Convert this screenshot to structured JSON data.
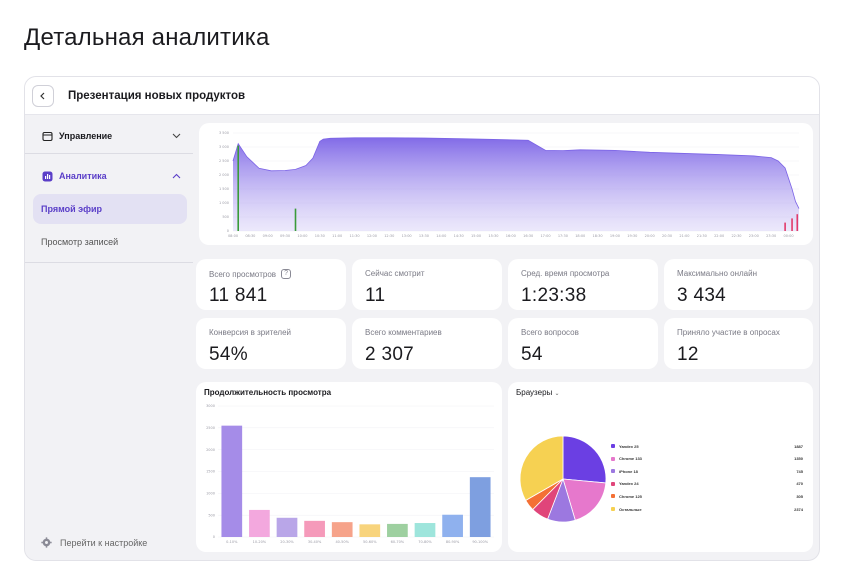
{
  "page": {
    "title": "Детальная аналитика"
  },
  "header": {
    "back_icon": "chevron-left-icon",
    "title": "Презентация новых продуктов"
  },
  "sidebar": {
    "groups": [
      {
        "label": "Управление",
        "icon": "window-icon",
        "expanded": false
      },
      {
        "label": "Аналитика",
        "icon": "analytics-icon",
        "expanded": true
      }
    ],
    "items": [
      {
        "label": "Прямой эфир",
        "active": true
      },
      {
        "label": "Просмотр записей",
        "active": false
      }
    ],
    "footer_label": "Перейти к настройке",
    "accent": "#5a3ec8"
  },
  "stats": [
    {
      "label": "Всего просмотров",
      "value": "11 841",
      "help": true
    },
    {
      "label": "Сейчас смотрит",
      "value": "11"
    },
    {
      "label": "Сред. время просмотра",
      "value": "1:23:38"
    },
    {
      "label": "Максимально онлайн",
      "value": "3 434"
    },
    {
      "label": "Конверсия в зрителей",
      "value": "54%"
    },
    {
      "label": "Всего комментариев",
      "value": "2 307"
    },
    {
      "label": "Всего вопросов",
      "value": "54"
    },
    {
      "label": "Приняло участие в опросах",
      "value": "12"
    }
  ],
  "chart_data": [
    {
      "type": "area",
      "y_ticks": [
        "3 500",
        "3 000",
        "2 500",
        "2 000",
        "1 500",
        "1 000",
        "500",
        "0"
      ],
      "ylim": [
        0,
        3500
      ],
      "x_ticks": [
        "08:00",
        "08:30",
        "09:00",
        "09:30",
        "10:00",
        "10:30",
        "11:00",
        "11:30",
        "12:00",
        "12:30",
        "13:00",
        "13:30",
        "14:00",
        "14:30",
        "15:00",
        "15:30",
        "16:00",
        "16:30",
        "17:00",
        "17:30",
        "18:00",
        "18:30",
        "19:00",
        "19:30",
        "20:00",
        "20:30",
        "21:00",
        "21:30",
        "22:00",
        "22:30",
        "23:00",
        "23:30",
        "00:00"
      ],
      "series": [
        {
          "color": "#7b63e6",
          "x": [
            0,
            0.3,
            0.8,
            1.5,
            2.2,
            3,
            3.6,
            4.2,
            4.6,
            5,
            5.2,
            5.6,
            7,
            9,
            11,
            13,
            15,
            17,
            18,
            19,
            20,
            22,
            24,
            26,
            28,
            30,
            31,
            31.4,
            31.8,
            32.2,
            32.4,
            32.6
          ],
          "y": [
            2500,
            3120,
            2650,
            2240,
            2150,
            2160,
            2200,
            2340,
            2600,
            3200,
            3280,
            3310,
            3330,
            3330,
            3320,
            3300,
            3270,
            3240,
            2880,
            2870,
            2900,
            2880,
            2810,
            2770,
            2730,
            2680,
            2620,
            2500,
            2250,
            1500,
            1050,
            800
          ]
        }
      ],
      "spikes": [
        {
          "x": 0.3,
          "value": 3050,
          "color": "#3a9b3a"
        },
        {
          "x": 3.6,
          "value": 800,
          "color": "#3a9b3a"
        },
        {
          "x": 32.5,
          "value": 600,
          "color": "#e23a6a"
        },
        {
          "x": 32.2,
          "value": 450,
          "color": "#e23a6a"
        },
        {
          "x": 31.8,
          "value": 300,
          "color": "#e23a6a"
        }
      ]
    },
    {
      "type": "bar",
      "title": "Продолжительность просмотра",
      "categories": [
        "0-10%",
        "10-20%",
        "20-30%",
        "30-40%",
        "40-50%",
        "50-60%",
        "60-70%",
        "70-80%",
        "80-90%",
        "90-100%"
      ],
      "values": [
        2550,
        620,
        440,
        370,
        340,
        290,
        300,
        320,
        510,
        1370
      ],
      "colors": [
        "#a58ce8",
        "#f3a8de",
        "#b9a6e8",
        "#f59aba",
        "#f6a38a",
        "#f8d47d",
        "#9ed0a0",
        "#9ee5dc",
        "#8fb1ee",
        "#7e9fe0"
      ],
      "y_ticks": [
        "3000",
        "2500",
        "2000",
        "1500",
        "1000",
        "500",
        "0"
      ],
      "ylim": [
        0,
        3000
      ]
    },
    {
      "type": "pie",
      "title": "Браузеры",
      "slices": [
        {
          "name": "Yandex 25",
          "value": 1887,
          "label": "1887",
          "color": "#6b3fe3"
        },
        {
          "name": "Chrome 133",
          "value": 1350,
          "label": "1350",
          "color": "#e678cc"
        },
        {
          "name": "iPhone 18",
          "value": 745,
          "label": "745",
          "color": "#9c78e0"
        },
        {
          "name": "Yandex 24",
          "value": 470,
          "label": "470",
          "color": "#e0457a"
        },
        {
          "name": "Chrome 125",
          "value": 305,
          "label": "305",
          "color": "#f47035"
        },
        {
          "name": "Остальные",
          "value": 2374,
          "label": "2374",
          "color": "#f6d152"
        }
      ]
    }
  ]
}
